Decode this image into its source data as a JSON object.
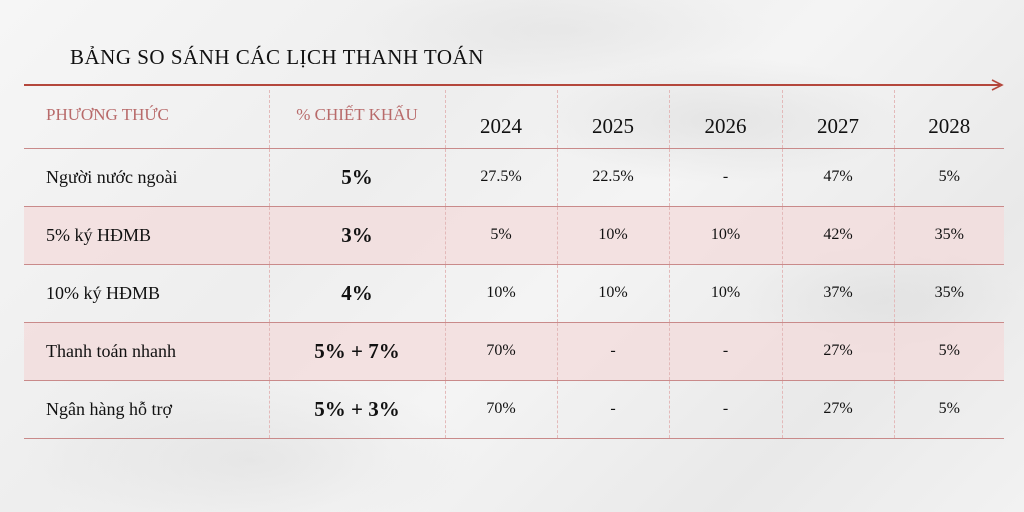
{
  "title": "BẢNG SO SÁNH CÁC LỊCH THANH TOÁN",
  "colors": {
    "accent": "#b4473c",
    "header_text": "#b86a6a",
    "row_shade": "#f3dbdb",
    "divider": "#c98a8a"
  },
  "table": {
    "headers": {
      "method": "PHƯƠNG THỨC",
      "discount": "% CHIẾT KHẤU",
      "years": [
        "2024",
        "2025",
        "2026",
        "2027",
        "2028"
      ]
    },
    "rows": [
      {
        "method": "Người nước ngoài",
        "discount": "5%",
        "values": [
          "27.5%",
          "22.5%",
          "-",
          "47%",
          "5%"
        ]
      },
      {
        "method": "5% ký HĐMB",
        "discount": "3%",
        "values": [
          "5%",
          "10%",
          "10%",
          "42%",
          "35%"
        ]
      },
      {
        "method": "10% ký HĐMB",
        "discount": "4%",
        "values": [
          "10%",
          "10%",
          "10%",
          "37%",
          "35%"
        ]
      },
      {
        "method": "Thanh toán nhanh",
        "discount": "5% + 7%",
        "values": [
          "70%",
          "-",
          "-",
          "27%",
          "5%"
        ]
      },
      {
        "method": "Ngân hàng hỗ trợ",
        "discount": "5% + 3%",
        "values": [
          "70%",
          "-",
          "-",
          "27%",
          "5%"
        ]
      }
    ]
  }
}
